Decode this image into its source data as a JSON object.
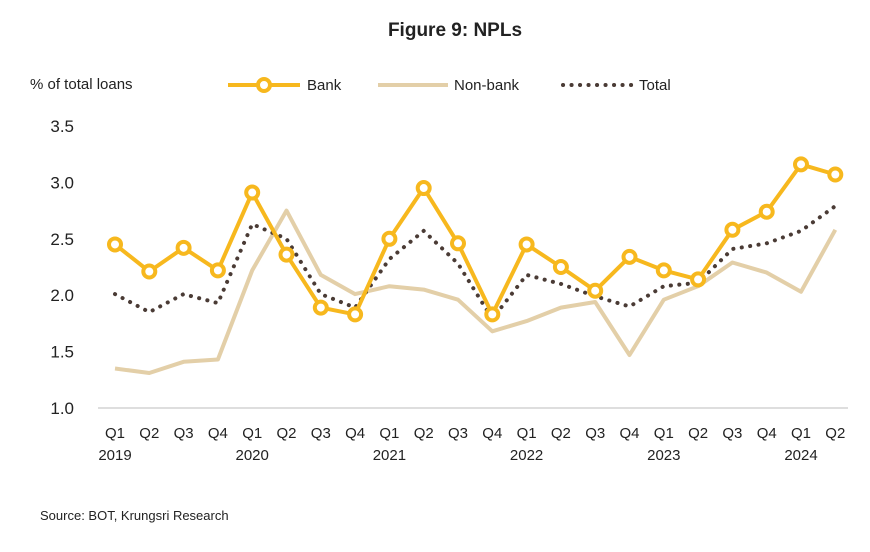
{
  "title": "Figure 9: NPLs",
  "source": "Source: BOT, Krungsri Research",
  "chart_data": {
    "type": "line",
    "title": "Figure 9: NPLs",
    "ylabel": "% of total loans",
    "xlabel": "",
    "ylim": [
      1.0,
      3.5
    ],
    "yticks": [
      "1.0",
      "1.5",
      "2.0",
      "2.5",
      "3.0",
      "3.5"
    ],
    "categories": [
      "Q1",
      "Q2",
      "Q3",
      "Q4",
      "Q1",
      "Q2",
      "Q3",
      "Q4",
      "Q1",
      "Q2",
      "Q3",
      "Q4",
      "Q1",
      "Q2",
      "Q3",
      "Q4",
      "Q1",
      "Q2",
      "Q3",
      "Q4",
      "Q1",
      "Q2"
    ],
    "years": [
      {
        "label": "2019",
        "index": 0
      },
      {
        "label": "2020",
        "index": 4
      },
      {
        "label": "2021",
        "index": 8
      },
      {
        "label": "2022",
        "index": 12
      },
      {
        "label": "2023",
        "index": 16
      },
      {
        "label": "2024",
        "index": 20
      }
    ],
    "grid": false,
    "legend_position": "top",
    "series": [
      {
        "name": "Bank",
        "color": "#f7b81e",
        "style": "solid-markers",
        "values": [
          2.45,
          2.21,
          2.42,
          2.22,
          2.91,
          2.36,
          1.89,
          1.83,
          2.5,
          2.95,
          2.46,
          1.83,
          2.45,
          2.25,
          2.04,
          2.34,
          2.22,
          2.14,
          2.58,
          2.74,
          3.16,
          3.07
        ]
      },
      {
        "name": "Non-bank",
        "color": "#e3cfa8",
        "style": "solid",
        "values": [
          1.35,
          1.31,
          1.41,
          1.43,
          2.22,
          2.75,
          2.18,
          2.01,
          2.08,
          2.05,
          1.96,
          1.68,
          1.77,
          1.89,
          1.94,
          1.47,
          1.96,
          2.08,
          2.29,
          2.2,
          2.03,
          2.58
        ]
      },
      {
        "name": "Total",
        "color": "#4a3b35",
        "style": "dotted",
        "values": [
          2.01,
          1.85,
          2.01,
          1.93,
          2.63,
          2.5,
          2.01,
          1.89,
          2.32,
          2.57,
          2.28,
          1.79,
          2.18,
          2.1,
          1.99,
          1.9,
          2.08,
          2.11,
          2.41,
          2.46,
          2.57,
          2.79
        ]
      }
    ]
  }
}
